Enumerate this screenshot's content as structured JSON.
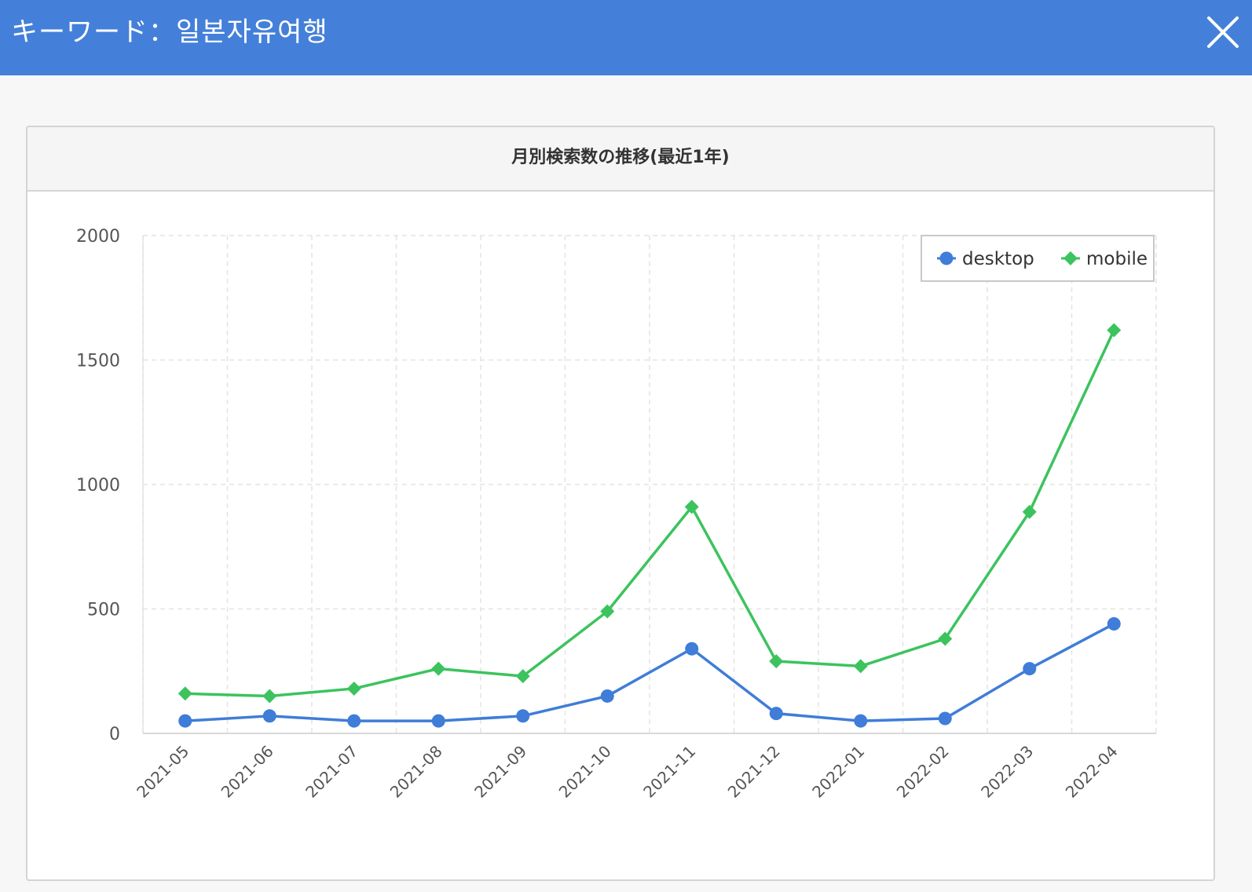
{
  "header": {
    "title": "キーワード：일본자유여행",
    "close_icon": "close-icon"
  },
  "panel": {
    "title": "月別検索数の推移(最近1年)"
  },
  "colors": {
    "header_bg": "#4480d9",
    "desktop": "#3f7dd8",
    "mobile": "#3cc35e"
  },
  "chart_data": {
    "type": "line",
    "title": "月別検索数の推移(最近1年)",
    "xlabel": "",
    "ylabel": "",
    "ylim": [
      0,
      2000
    ],
    "yticks": [
      0,
      500,
      1000,
      1500,
      2000
    ],
    "grid": true,
    "legend_position": "top-right",
    "categories": [
      "2021-05",
      "2021-06",
      "2021-07",
      "2021-08",
      "2021-09",
      "2021-10",
      "2021-11",
      "2021-12",
      "2022-01",
      "2022-02",
      "2022-03",
      "2022-04"
    ],
    "series": [
      {
        "name": "desktop",
        "marker": "circle",
        "color": "#3f7dd8",
        "values": [
          50,
          70,
          50,
          50,
          70,
          150,
          340,
          80,
          50,
          60,
          260,
          440
        ]
      },
      {
        "name": "mobile",
        "marker": "diamond",
        "color": "#3cc35e",
        "values": [
          160,
          150,
          180,
          260,
          230,
          490,
          910,
          290,
          270,
          380,
          890,
          1620
        ]
      }
    ]
  }
}
